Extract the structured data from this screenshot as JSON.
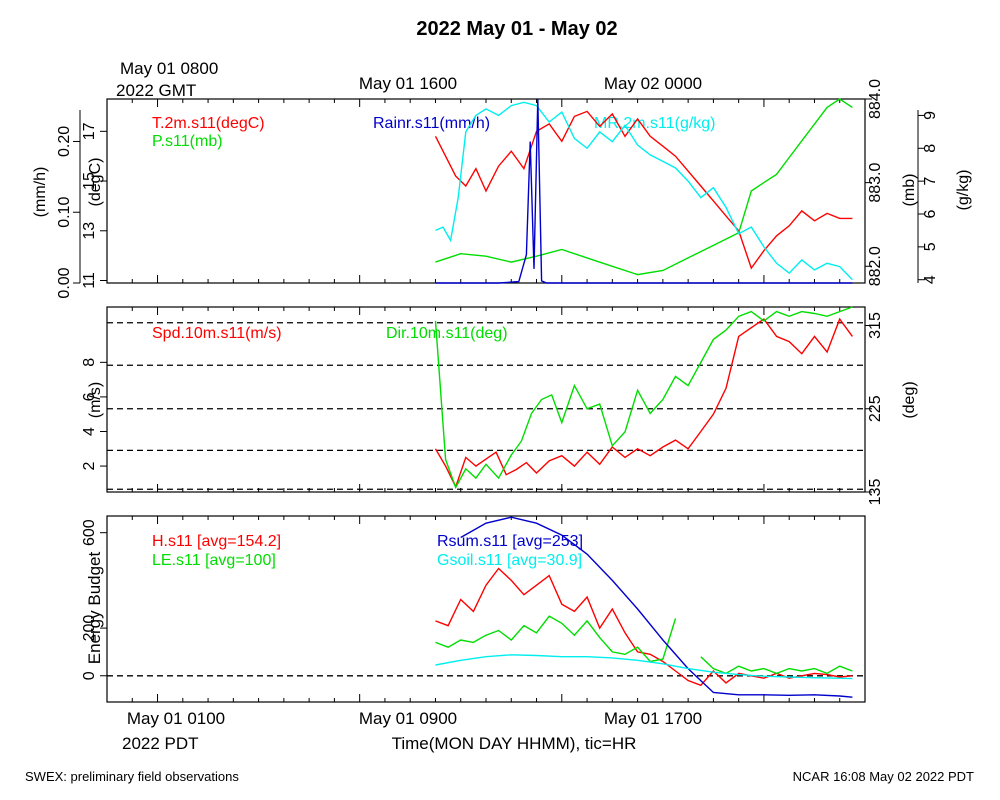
{
  "title": "2022 May 01 - May 02",
  "gmt_labels": [
    "May 01 0800",
    "2022 GMT",
    "May 01 1600",
    "May 02 0000"
  ],
  "pdt_labels": [
    "May 01 0100",
    "2022 PDT",
    "May 01 0900",
    "May 01 1700"
  ],
  "xlabel": "Time(MON DAY HHMM), tic=HR",
  "footer_left": "SWEX: preliminary field observations",
  "footer_right": "NCAR 16:08 May 02 2022 PDT",
  "colors": {
    "red": "#ff0000",
    "green": "#00dd00",
    "blue": "#0000cc",
    "cyan": "#00eeee",
    "black": "#000000"
  },
  "chart_data": [
    {
      "type": "line",
      "panel": "top",
      "x_unit": "hours since May 01 0000 PDT",
      "xlim": [
        -1.0,
        29.0
      ],
      "axes": {
        "rain": {
          "label": "(mm/h)",
          "ticks": [
            "0.00",
            "0.10",
            "0.20"
          ],
          "ylim": [
            0,
            0.26
          ]
        },
        "temp": {
          "label": "(degC)",
          "ticks": [
            "11",
            "13",
            "15",
            "17"
          ],
          "ylim": [
            10.9,
            18.3
          ]
        },
        "pres": {
          "label": "(mb)",
          "ticks": [
            "882.0",
            "883.0",
            "884.0"
          ],
          "ylim": [
            881.8,
            884.0
          ]
        },
        "mr": {
          "label": "(g/kg)",
          "ticks": [
            "4",
            "5",
            "6",
            "7",
            "8",
            "9"
          ],
          "ylim": [
            3.9,
            9.5
          ]
        }
      },
      "series": [
        {
          "name": "T.2m.s11(degC)",
          "axis": "temp",
          "color": "#ff0000",
          "x": [
            12.0,
            12.4,
            12.8,
            13.2,
            13.6,
            14.0,
            14.5,
            15.0,
            15.5,
            16.0,
            16.5,
            17.0,
            17.5,
            18.0,
            18.5,
            19.0,
            19.5,
            20.0,
            20.5,
            21.0,
            21.5,
            22.0,
            22.5,
            23.0,
            23.5,
            24.0,
            24.5,
            25.0,
            25.5,
            26.0,
            26.5,
            27.0,
            27.5,
            28.0,
            28.5
          ],
          "y": [
            16.8,
            16.0,
            15.2,
            14.8,
            15.5,
            14.6,
            15.6,
            16.2,
            15.5,
            17.0,
            17.3,
            16.6,
            17.6,
            17.8,
            17.2,
            17.7,
            16.8,
            17.5,
            16.8,
            16.4,
            16.0,
            15.4,
            14.8,
            14.2,
            13.6,
            13.0,
            11.5,
            12.2,
            12.8,
            13.2,
            13.8,
            13.4,
            13.7,
            13.5,
            13.5
          ]
        },
        {
          "name": "P.s11(mb)",
          "axis": "pres",
          "color": "#00dd00",
          "x": [
            12.0,
            13.0,
            14.0,
            15.0,
            16.0,
            17.0,
            18.0,
            19.0,
            20.0,
            21.0,
            22.0,
            23.0,
            24.0,
            24.5,
            25.0,
            25.5,
            26.0,
            26.5,
            27.0,
            27.5,
            28.0,
            28.5
          ],
          "y": [
            882.05,
            882.15,
            882.12,
            882.05,
            882.12,
            882.2,
            882.1,
            882.0,
            881.9,
            881.95,
            882.1,
            882.25,
            882.4,
            882.9,
            883.0,
            883.1,
            883.3,
            883.5,
            883.7,
            883.9,
            884.0,
            883.9
          ]
        },
        {
          "name": "MR.2m.s11(g/kg)",
          "axis": "mr",
          "color": "#00eeee",
          "x": [
            12.0,
            12.3,
            12.6,
            12.9,
            13.2,
            13.6,
            14.0,
            14.5,
            15.0,
            15.5,
            16.0,
            16.5,
            17.0,
            17.5,
            18.0,
            18.5,
            19.0,
            19.5,
            20.0,
            20.5,
            21.0,
            21.5,
            22.0,
            22.5,
            23.0,
            23.5,
            24.0,
            24.5,
            25.0,
            25.5,
            26.0,
            26.5,
            27.0,
            27.5,
            28.0,
            28.5
          ],
          "y": [
            5.5,
            5.6,
            5.2,
            6.5,
            8.5,
            9.0,
            9.2,
            9.0,
            9.3,
            9.4,
            9.3,
            8.8,
            9.1,
            8.3,
            8.0,
            8.5,
            8.2,
            8.7,
            8.1,
            7.8,
            7.6,
            7.4,
            7.0,
            6.5,
            6.8,
            6.2,
            5.4,
            5.6,
            5.0,
            4.5,
            4.2,
            4.6,
            4.3,
            4.5,
            4.4,
            4.0
          ]
        },
        {
          "name": "Rainr.s11(mm/h)",
          "axis": "rain",
          "color": "#0000cc",
          "x": [
            12.0,
            14.5,
            15.3,
            15.6,
            15.75,
            15.9,
            16.05,
            16.2,
            16.4,
            17.0,
            28.5
          ],
          "y": [
            0.0,
            0.0,
            0.002,
            0.04,
            0.2,
            0.02,
            0.26,
            0.003,
            0.0,
            0.0,
            0.0
          ]
        }
      ]
    },
    {
      "type": "line",
      "panel": "middle",
      "xlim": [
        -1.0,
        29.0
      ],
      "axes": {
        "spd": {
          "label": "(m/s)",
          "ticks": [
            "2",
            "4",
            "6",
            "8"
          ],
          "ylim": [
            0.5,
            11.2
          ]
        },
        "dir": {
          "label": "(deg)",
          "ticks": [
            "135",
            "225",
            "315"
          ],
          "ylim": [
            135,
            335
          ]
        }
      },
      "series": [
        {
          "name": "Spd.10m.s11(m/s)",
          "axis": "spd",
          "color": "#ff0000",
          "x": [
            12.0,
            12.4,
            12.8,
            13.2,
            13.6,
            14.0,
            14.4,
            14.8,
            15.2,
            15.6,
            16.0,
            16.5,
            17.0,
            17.5,
            18.0,
            18.5,
            19.0,
            19.5,
            20.0,
            20.5,
            21.0,
            21.5,
            22.0,
            22.5,
            23.0,
            23.5,
            24.0,
            24.5,
            25.0,
            25.5,
            26.0,
            26.5,
            27.0,
            27.5,
            28.0,
            28.5
          ],
          "y": [
            3.0,
            2.0,
            0.8,
            2.5,
            2.0,
            2.4,
            2.8,
            1.5,
            1.8,
            2.2,
            1.6,
            2.3,
            2.6,
            2.0,
            2.8,
            2.1,
            3.1,
            2.5,
            3.0,
            2.6,
            3.1,
            3.5,
            3.0,
            4.0,
            5.0,
            6.5,
            9.5,
            10.0,
            10.5,
            9.5,
            9.2,
            8.5,
            9.5,
            8.6,
            10.5,
            9.5
          ]
        },
        {
          "name": "Dir.10m.s11(deg)",
          "axis": "dir",
          "color": "#00dd00",
          "x": [
            12.0,
            12.4,
            12.8,
            13.2,
            13.6,
            14.0,
            14.5,
            15.0,
            15.4,
            15.8,
            16.2,
            16.6,
            17.0,
            17.5,
            18.0,
            18.5,
            19.0,
            19.5,
            20.0,
            20.5,
            21.0,
            21.5,
            22.0,
            22.5,
            23.0,
            23.5,
            24.0,
            24.5,
            25.0,
            25.5,
            26.0,
            26.5,
            27.0,
            27.5,
            28.0,
            28.5
          ],
          "y": [
            320,
            170,
            140,
            160,
            150,
            165,
            150,
            175,
            190,
            220,
            235,
            240,
            210,
            250,
            225,
            230,
            185,
            200,
            245,
            220,
            235,
            260,
            250,
            275,
            300,
            310,
            325,
            330,
            320,
            330,
            325,
            330,
            328,
            325,
            330,
            335
          ]
        }
      ],
      "reference_lines": [
        138,
        180,
        225,
        272,
        318
      ]
    },
    {
      "type": "line",
      "panel": "bottom",
      "ylabel": "Energy Budget",
      "xlim": [
        -1.0,
        29.0
      ],
      "ylim": [
        -110,
        670
      ],
      "ticks": [
        "0",
        "200",
        "600"
      ],
      "series": [
        {
          "name": "H.s11 [avg=154.2]",
          "color": "#ff0000",
          "x": [
            12.0,
            12.5,
            13.0,
            13.5,
            14.0,
            14.5,
            15.0,
            15.5,
            16.0,
            16.5,
            17.0,
            17.5,
            18.0,
            18.5,
            19.0,
            19.5,
            20.0,
            20.5,
            21.0,
            21.5,
            22.0,
            22.5,
            23.0,
            23.5,
            24.0,
            24.5,
            25.0,
            25.5,
            26.0,
            26.5,
            27.0,
            27.5,
            28.0,
            28.5
          ],
          "y": [
            230,
            210,
            320,
            270,
            380,
            450,
            400,
            340,
            380,
            420,
            300,
            270,
            330,
            200,
            280,
            180,
            100,
            90,
            60,
            20,
            -20,
            -40,
            20,
            -30,
            10,
            0,
            -10,
            10,
            -10,
            0,
            10,
            5,
            -5,
            0
          ]
        },
        {
          "name": "LE.s11 [avg=100]",
          "color": "#00dd00",
          "x": [
            12.0,
            12.5,
            13.0,
            13.5,
            14.0,
            14.5,
            15.0,
            15.5,
            16.0,
            16.5,
            17.0,
            17.5,
            18.0,
            18.5,
            19.0,
            19.5,
            20.0,
            20.5,
            21.0,
            21.5,
            22.0,
            22.5,
            23.0,
            23.5,
            24.0,
            24.5,
            25.0,
            25.5,
            26.0,
            26.5,
            27.0,
            27.5,
            28.0,
            28.5
          ],
          "y": [
            140,
            120,
            150,
            140,
            170,
            190,
            150,
            210,
            180,
            250,
            220,
            170,
            230,
            160,
            100,
            90,
            120,
            60,
            70,
            240,
            null,
            80,
            30,
            10,
            40,
            20,
            30,
            10,
            30,
            20,
            30,
            10,
            40,
            20
          ]
        },
        {
          "name": "Rsum.s11 [avg=253]",
          "color": "#0000cc",
          "x": [
            13.0,
            14.0,
            15.0,
            16.0,
            17.0,
            18.0,
            19.0,
            20.0,
            21.0,
            22.0,
            23.0,
            24.0,
            25.0,
            26.0,
            27.0,
            28.0,
            28.5
          ],
          "y": [
            580,
            640,
            665,
            640,
            590,
            510,
            400,
            280,
            150,
            30,
            -70,
            -80,
            -80,
            -82,
            -80,
            -85,
            -90
          ]
        },
        {
          "name": "Gsoil.s11 [avg=30.9]",
          "color": "#00eeee",
          "x": [
            12.0,
            13.0,
            14.0,
            15.0,
            16.0,
            17.0,
            18.0,
            19.0,
            20.0,
            21.0,
            22.0,
            23.0,
            24.0,
            25.0,
            26.0,
            27.0,
            28.0,
            28.5
          ],
          "y": [
            45,
            65,
            80,
            88,
            85,
            80,
            80,
            75,
            65,
            50,
            30,
            15,
            5,
            -2,
            -5,
            -8,
            -10,
            -12
          ]
        }
      ]
    }
  ]
}
